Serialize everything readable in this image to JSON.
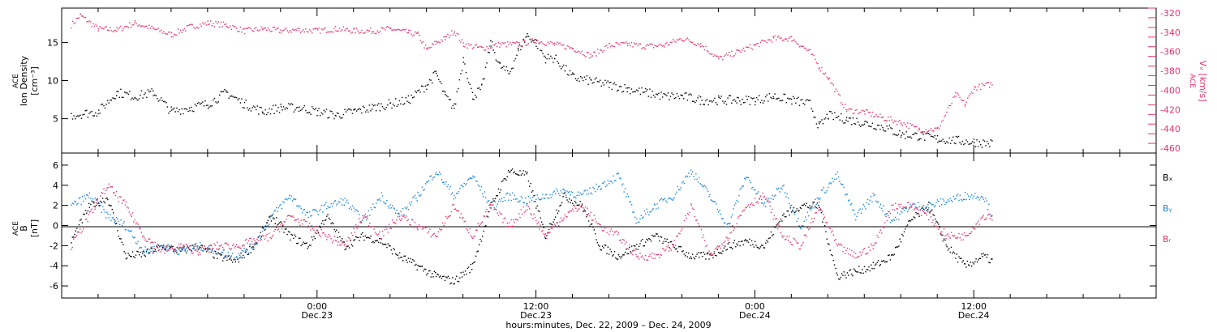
{
  "colors": {
    "black": "#000000",
    "red": "#e8336c",
    "blue": "#1a86df"
  },
  "xaxis": {
    "label": "hours:minutes, Dec. 22, 2009 – Dec. 24, 2009",
    "range_hours": [
      -14,
      46
    ],
    "ticks": [
      {
        "h": 0,
        "time": "0:00",
        "date": "Dec.23"
      },
      {
        "h": 12,
        "time": "12:00",
        "date": "Dec.23"
      },
      {
        "h": 24,
        "time": "0:00",
        "date": "Dec.24"
      },
      {
        "h": 36,
        "time": "12:00",
        "date": "Dec.24"
      }
    ],
    "minor_step_hours": 2
  },
  "panel1": {
    "ylabel_left": [
      "ACE",
      "Ion Density",
      "[cm⁻³]"
    ],
    "ylabel_right": [
      "ACE",
      "Vₓ [km/s]"
    ],
    "left_ylim": [
      0.5,
      19.5
    ],
    "left_ticks": [
      5,
      10,
      15
    ],
    "right_ylim": [
      -465,
      -315
    ],
    "right_ticks": [
      -320,
      -340,
      -360,
      -380,
      -400,
      -420,
      -440,
      -460
    ]
  },
  "panel2": {
    "ylabel": [
      "ACE",
      "B",
      "[nT]"
    ],
    "ylim": [
      -7.2,
      7.2
    ],
    "ticks": [
      6,
      4,
      2,
      0,
      -2,
      -4,
      -6
    ],
    "legend": [
      {
        "label": "Bₓ",
        "color": "#000000"
      },
      {
        "label": "Bᵧ",
        "color": "#1a86df"
      },
      {
        "label": "Bᵣ",
        "color": "#e8336c"
      }
    ]
  },
  "chart_data": [
    {
      "type": "scatter",
      "title": "",
      "xlabel": "hours:minutes, Dec. 22, 2009 – Dec. 24, 2009",
      "x_unit": "hours since 0:00 Dec.23",
      "series": [
        {
          "name": "ACE Ion Density",
          "axis": "left",
          "color": "#000000",
          "x": [
            -13.5,
            -12,
            -11,
            -10,
            -9,
            -8,
            -7,
            -6,
            -5,
            -4,
            -3,
            -2,
            -1,
            0,
            1,
            2,
            3,
            4,
            5,
            6,
            6.5,
            7,
            7.5,
            8,
            8.5,
            9,
            9.5,
            10,
            10.5,
            11,
            11.5,
            12,
            12.5,
            13,
            14,
            15,
            16,
            17,
            18,
            19,
            20,
            21,
            22,
            23,
            24,
            25,
            26,
            27,
            27.5,
            28,
            29,
            30,
            31,
            32,
            33,
            34,
            35,
            36,
            37
          ],
          "y": [
            5.5,
            6,
            8.5,
            8,
            8.5,
            6,
            6.5,
            7,
            8.5,
            7,
            6,
            6.5,
            6.5,
            6,
            5.5,
            6,
            6.5,
            7,
            7.5,
            9.5,
            11,
            8,
            6.5,
            13,
            8,
            9,
            15,
            12,
            11,
            14,
            16,
            15,
            13,
            13,
            10.5,
            10,
            9.5,
            9,
            8.5,
            8,
            8,
            7.5,
            7.5,
            7.5,
            7.5,
            8,
            7.5,
            7,
            4,
            5.5,
            5,
            4.5,
            4,
            3,
            2.8,
            2.4,
            2.2,
            2,
            1.8
          ]
        },
        {
          "name": "ACE Vx",
          "axis": "right",
          "color": "#e8336c",
          "x": [
            -13.5,
            -13,
            -12,
            -11,
            -10,
            -9,
            -8,
            -7,
            -6,
            -5,
            -4,
            -3,
            -2,
            -1,
            0,
            1,
            2,
            3,
            4,
            5,
            5.5,
            6,
            6.5,
            7,
            7.5,
            8,
            9,
            10,
            11,
            12,
            13,
            14,
            15,
            16,
            17,
            18,
            19,
            20,
            21,
            22,
            23,
            24,
            25,
            26,
            27,
            27.5,
            28,
            29,
            30,
            31,
            32,
            33,
            34,
            35,
            35.5,
            36,
            37
          ],
          "y": [
            -332,
            -322,
            -336,
            -337,
            -330,
            -336,
            -342,
            -334,
            -330,
            -332,
            -338,
            -336,
            -338,
            -337,
            -338,
            -336,
            -338,
            -338,
            -336,
            -340,
            -342,
            -358,
            -350,
            -346,
            -338,
            -352,
            -356,
            -352,
            -352,
            -348,
            -352,
            -356,
            -364,
            -353,
            -352,
            -354,
            -353,
            -346,
            -352,
            -367,
            -360,
            -353,
            -346,
            -346,
            -360,
            -375,
            -386,
            -420,
            -422,
            -428,
            -433,
            -440,
            -440,
            -404,
            -414,
            -397,
            -393
          ]
        }
      ],
      "left_ylabel": "ACE Ion Density [cm⁻³]",
      "right_ylabel": "ACE Vₓ [km/s]",
      "left_ylim": [
        0.5,
        19.5
      ],
      "right_ylim": [
        -465,
        -315
      ],
      "grid": false
    },
    {
      "type": "scatter",
      "title": "",
      "xlabel": "hours:minutes, Dec. 22, 2009 – Dec. 24, 2009",
      "x_unit": "hours since 0:00 Dec.23",
      "ylabel": "ACE B [nT]",
      "ylim": [
        -7.2,
        7.2
      ],
      "zero_line": true,
      "series": [
        {
          "name": "Bₓ",
          "color": "#000000",
          "x": [
            -13.5,
            -12.5,
            -11.5,
            -10.5,
            -9.5,
            -8.5,
            -7.5,
            -6.5,
            -5.5,
            -4.5,
            -3.5,
            -2.5,
            -1.5,
            -0.5,
            0.5,
            1.5,
            2.5,
            3.5,
            4.5,
            5.5,
            6.5,
            7.5,
            8.5,
            9.5,
            10.5,
            11.5,
            12.5,
            13.5,
            14.5,
            15.5,
            16.5,
            17.5,
            18.5,
            19.5,
            20.5,
            21.5,
            22.5,
            23.5,
            24.5,
            25.5,
            26.5,
            27.5,
            28.5,
            29.5,
            30.5,
            31.5,
            32.5,
            33.5,
            34.5,
            35.5,
            36.5,
            37
          ],
          "y": [
            -1.5,
            2,
            2.8,
            -3,
            -2.8,
            -2,
            -2.5,
            -2,
            -3,
            -3.5,
            -2,
            1,
            -1,
            -2,
            1,
            -2,
            -1,
            -1.5,
            -3,
            -4,
            -5,
            -5.5,
            -4,
            2,
            5.5,
            5,
            -1,
            3,
            2,
            -2,
            -3,
            -2,
            -1,
            -2,
            -3,
            -3,
            -2,
            -1.5,
            -2,
            1,
            2,
            2,
            -5,
            -4.5,
            -4,
            -3,
            0.5,
            2,
            -2,
            -4,
            -3,
            -3.5
          ]
        },
        {
          "name": "Bᵧ",
          "color": "#1a86df",
          "x": [
            -13.5,
            -12.5,
            -11.5,
            -10.5,
            -9.5,
            -8.5,
            -7.5,
            -6.5,
            -5.5,
            -4.5,
            -3.5,
            -2.5,
            -1.5,
            -0.5,
            0.5,
            1.5,
            2.5,
            3.5,
            4.5,
            5.5,
            6.5,
            7.5,
            8.5,
            9.5,
            10.5,
            11.5,
            12.5,
            13.5,
            14.5,
            15.5,
            16.5,
            17.5,
            18.5,
            19.5,
            20.5,
            21.5,
            22.5,
            23.5,
            24.5,
            25.5,
            26.5,
            27.5,
            28.5,
            29.5,
            30.5,
            31.5,
            32.5,
            33.5,
            34.5,
            35.5,
            36.5,
            37
          ],
          "y": [
            2,
            3,
            1,
            0,
            -2.5,
            -2,
            -2.5,
            -2,
            -2.5,
            -3,
            -2,
            1,
            3,
            1,
            2,
            2.5,
            0.5,
            3,
            1,
            3,
            5.5,
            3,
            5,
            2,
            3,
            2.5,
            3,
            3.5,
            3,
            4,
            5,
            0.5,
            2,
            3,
            5.5,
            3,
            0,
            5,
            2,
            4,
            0,
            3,
            5,
            1,
            3,
            0.5,
            2,
            2,
            2.5,
            3,
            3,
            1
          ]
        },
        {
          "name": "Bᵣ",
          "color": "#e8336c",
          "x": [
            -13.5,
            -12.5,
            -11.5,
            -10.5,
            -9.5,
            -8.5,
            -7.5,
            -6.5,
            -5.5,
            -4.5,
            -3.5,
            -2.5,
            -1.5,
            -0.5,
            0.5,
            1.5,
            2.5,
            3.5,
            4.5,
            5.5,
            6.5,
            7.5,
            8.5,
            9.5,
            10.5,
            11.5,
            12.5,
            13.5,
            14.5,
            15.5,
            16.5,
            17.5,
            18.5,
            19.5,
            20.5,
            21.5,
            22.5,
            23.5,
            24.5,
            25.5,
            26.5,
            27.5,
            28.5,
            29.5,
            30.5,
            31.5,
            32.5,
            33.5,
            34.5,
            35.5,
            36.5,
            37
          ],
          "y": [
            -2,
            1,
            4,
            2,
            -1,
            -2.5,
            -2,
            -2.5,
            -2,
            -2,
            -1.5,
            -1,
            1,
            0,
            -1,
            -2,
            1,
            -1,
            1,
            0,
            -1,
            2,
            -1,
            2,
            0,
            2,
            -1,
            1,
            2,
            0,
            -1,
            -3,
            -3,
            -2,
            2,
            -3,
            -1,
            2,
            3,
            -1,
            -2,
            2,
            -2,
            -3,
            -2,
            2,
            2,
            1,
            -1,
            -1,
            1,
            1
          ]
        }
      ],
      "grid": false
    }
  ]
}
